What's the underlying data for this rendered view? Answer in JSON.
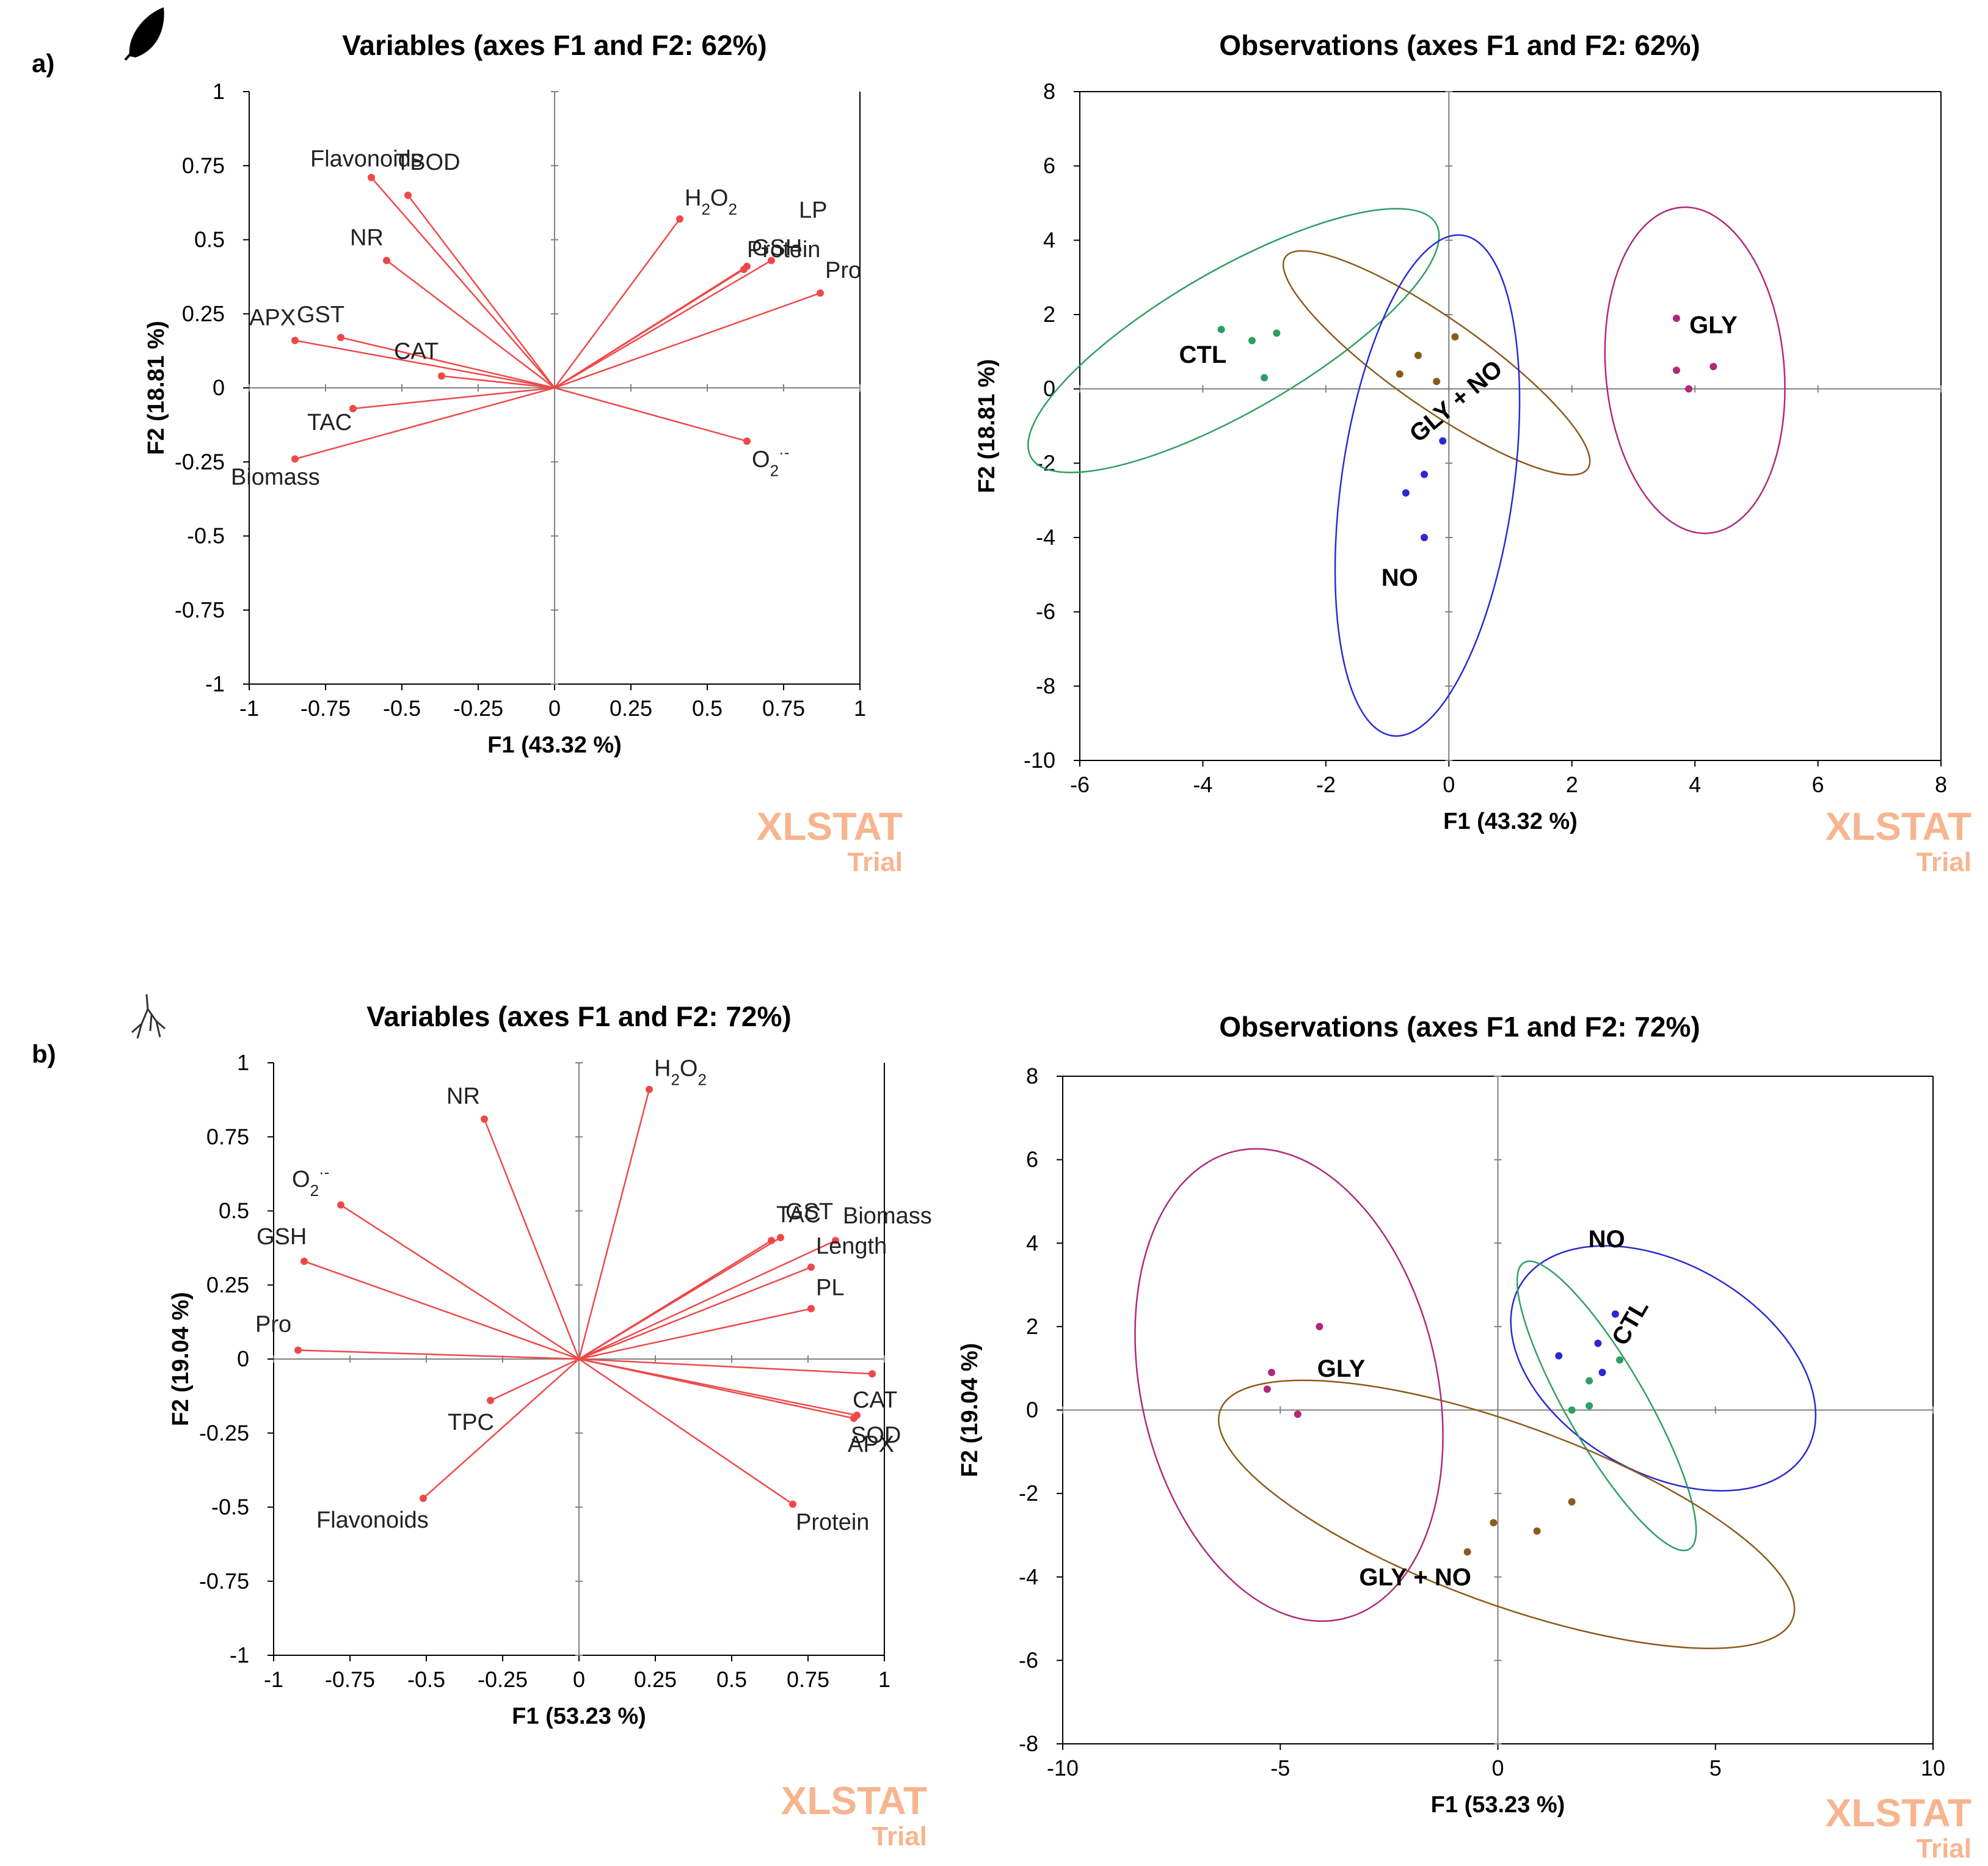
{
  "panels": [
    {
      "label": "a)",
      "icon": "leaf-icon"
    },
    {
      "label": "b)",
      "icon": "root-icon"
    }
  ],
  "watermark": {
    "brand": "XLSTAT",
    "note": "Trial"
  },
  "colors": {
    "vector": "#f04848",
    "frame": "#000000",
    "CTL": "#2e9e62",
    "GLY": "#b0287a",
    "NO": "#2a2ad0",
    "GLY + NO": "#8b5a1a",
    "watermark": "#f7b58f"
  },
  "chart_data": [
    {
      "id": "a-vars",
      "type": "scatter",
      "subtype": "correlation-circle",
      "title": "Variables (axes F1 and F2: 62%)",
      "xlabel": "F1 (43.32 %)",
      "ylabel": "F2 (18.81 %)",
      "xlim": [
        -1,
        1
      ],
      "ylim": [
        -1,
        1
      ],
      "xticks": [
        "-1",
        "-0.75",
        "-0.5",
        "-0.25",
        "0",
        "0.25",
        "0.5",
        "0.75",
        "1"
      ],
      "yticks": [
        "-1",
        "-0.75",
        "-0.5",
        "-0.25",
        "0",
        "0.25",
        "0.5",
        "0.75",
        "1"
      ],
      "variables": [
        {
          "name": "TBOD",
          "x": -0.48,
          "y": 0.65
        },
        {
          "name": "Flavonoids",
          "x": -0.6,
          "y": 0.71
        },
        {
          "name": "NR",
          "x": -0.55,
          "y": 0.43
        },
        {
          "name": "APX",
          "x": -0.85,
          "y": 0.16
        },
        {
          "name": "GST",
          "x": -0.7,
          "y": 0.17
        },
        {
          "name": "CAT",
          "x": -0.37,
          "y": 0.04
        },
        {
          "name": "TAC",
          "x": -0.66,
          "y": -0.07
        },
        {
          "name": "Biomass",
          "x": -0.85,
          "y": -0.24
        },
        {
          "name": "H2O2",
          "x": 0.41,
          "y": 0.57
        },
        {
          "name": "LP",
          "x": 0.71,
          "y": 0.43
        },
        {
          "name": "GSH",
          "x": 0.63,
          "y": 0.41
        },
        {
          "name": "Protein",
          "x": 0.62,
          "y": 0.4
        },
        {
          "name": "Pro",
          "x": 0.87,
          "y": 0.32
        },
        {
          "name": "O2-",
          "x": 0.63,
          "y": -0.18
        }
      ]
    },
    {
      "id": "a-obs",
      "type": "scatter",
      "title": "Observations (axes F1 and F2: 62%)",
      "xlabel": "F1 (43.32 %)",
      "ylabel": "F2 (18.81 %)",
      "xlim": [
        -6,
        8
      ],
      "ylim": [
        -10,
        8
      ],
      "xticks": [
        "-6",
        "-4",
        "-2",
        "0",
        "2",
        "4",
        "6",
        "8"
      ],
      "yticks": [
        "-10",
        "-8",
        "-6",
        "-4",
        "-2",
        "0",
        "2",
        "4",
        "6",
        "8"
      ],
      "groups": [
        {
          "name": "CTL",
          "points": [
            [
              -3.7,
              1.6
            ],
            [
              -3.2,
              1.3
            ],
            [
              -2.8,
              1.5
            ],
            [
              -3.0,
              0.3
            ]
          ],
          "ellipse": {
            "cx": -3.5,
            "cy": 1.3,
            "rx": 3.8,
            "ry": 1.9,
            "angle": -30
          }
        },
        {
          "name": "GLY + NO",
          "points": [
            [
              -0.5,
              0.9
            ],
            [
              0.1,
              1.4
            ],
            [
              -0.8,
              0.4
            ],
            [
              -0.2,
              0.2
            ]
          ],
          "ellipse": {
            "cx": -0.2,
            "cy": 0.7,
            "rx": 3.0,
            "ry": 1.2,
            "angle": 35
          }
        },
        {
          "name": "NO",
          "points": [
            [
              -0.1,
              -1.4
            ],
            [
              -0.4,
              -2.3
            ],
            [
              -0.7,
              -2.8
            ],
            [
              -0.4,
              -4.0
            ]
          ],
          "ellipse": {
            "cx": -0.35,
            "cy": -2.6,
            "rx": 1.4,
            "ry": 6.8,
            "angle": 8
          }
        },
        {
          "name": "GLY",
          "points": [
            [
              3.7,
              1.9
            ],
            [
              3.7,
              0.5
            ],
            [
              3.9,
              0.0
            ],
            [
              4.3,
              0.6
            ]
          ],
          "ellipse": {
            "cx": 4.0,
            "cy": 0.5,
            "rx": 1.45,
            "ry": 4.4,
            "angle": -5
          }
        }
      ]
    },
    {
      "id": "b-vars",
      "type": "scatter",
      "subtype": "correlation-circle",
      "title": "Variables (axes F1 and F2: 72%)",
      "xlabel": "F1 (53.23 %)",
      "ylabel": "F2 (19.04 %)",
      "xlim": [
        -1,
        1
      ],
      "ylim": [
        -1,
        1
      ],
      "xticks": [
        "-1",
        "-0.75",
        "-0.5",
        "-0.25",
        "0",
        "0.25",
        "0.5",
        "0.75",
        "1"
      ],
      "yticks": [
        "-1",
        "-0.75",
        "-0.5",
        "-0.25",
        "0",
        "0.25",
        "0.5",
        "0.75",
        "1"
      ],
      "variables": [
        {
          "name": "H2O2",
          "x": 0.23,
          "y": 0.91
        },
        {
          "name": "NR",
          "x": -0.31,
          "y": 0.81
        },
        {
          "name": "O2-",
          "x": -0.78,
          "y": 0.52
        },
        {
          "name": "GSH",
          "x": -0.9,
          "y": 0.33
        },
        {
          "name": "Pro",
          "x": -0.92,
          "y": 0.03
        },
        {
          "name": "TPC",
          "x": -0.29,
          "y": -0.14
        },
        {
          "name": "Flavonoids",
          "x": -0.51,
          "y": -0.47
        },
        {
          "name": "TAC",
          "x": 0.63,
          "y": 0.4
        },
        {
          "name": "GST",
          "x": 0.66,
          "y": 0.41
        },
        {
          "name": "Biomass",
          "x": 0.84,
          "y": 0.4
        },
        {
          "name": "Length",
          "x": 0.76,
          "y": 0.31
        },
        {
          "name": "PL",
          "x": 0.76,
          "y": 0.17
        },
        {
          "name": "CAT",
          "x": 0.96,
          "y": -0.05
        },
        {
          "name": "SOD",
          "x": 0.91,
          "y": -0.19
        },
        {
          "name": "APX",
          "x": 0.9,
          "y": -0.2
        },
        {
          "name": "Protein",
          "x": 0.7,
          "y": -0.49
        }
      ]
    },
    {
      "id": "b-obs",
      "type": "scatter",
      "title": "Observations (axes F1 and F2: 72%)",
      "xlabel": "F1 (53.23 %)",
      "ylabel": "F2 (19.04 %)",
      "xlim": [
        -10,
        10
      ],
      "ylim": [
        -8,
        8
      ],
      "xticks": [
        "-10",
        "-5",
        "0",
        "5",
        "10"
      ],
      "yticks": [
        "-8",
        "-6",
        "-4",
        "-2",
        "0",
        "2",
        "4",
        "6",
        "8"
      ],
      "groups": [
        {
          "name": "GLY",
          "points": [
            [
              -4.1,
              2.0
            ],
            [
              -5.2,
              0.9
            ],
            [
              -5.3,
              0.5
            ],
            [
              -4.6,
              -0.1
            ]
          ],
          "ellipse": {
            "cx": -4.8,
            "cy": 0.6,
            "rx": 3.4,
            "ry": 5.75,
            "angle": -13
          }
        },
        {
          "name": "NO",
          "points": [
            [
              2.7,
              2.3
            ],
            [
              2.3,
              1.6
            ],
            [
              1.4,
              1.3
            ],
            [
              2.4,
              0.9
            ]
          ],
          "ellipse": {
            "cx": 3.8,
            "cy": 1.0,
            "rx": 3.8,
            "ry": 2.5,
            "angle": 30
          }
        },
        {
          "name": "CTL",
          "points": [
            [
              2.8,
              1.2
            ],
            [
              2.1,
              0.7
            ],
            [
              1.7,
              0.0
            ],
            [
              2.1,
              0.1
            ]
          ],
          "ellipse": {
            "cx": 2.5,
            "cy": 0.1,
            "rx": 3.8,
            "ry": 0.95,
            "angle": 60
          }
        },
        {
          "name": "GLY + NO",
          "points": [
            [
              1.7,
              -2.2
            ],
            [
              -0.1,
              -2.7
            ],
            [
              0.9,
              -2.9
            ],
            [
              -0.7,
              -3.4
            ]
          ],
          "ellipse": {
            "cx": 0.2,
            "cy": -2.5,
            "rx": 7.0,
            "ry": 2.15,
            "angle": 20
          }
        }
      ]
    }
  ]
}
